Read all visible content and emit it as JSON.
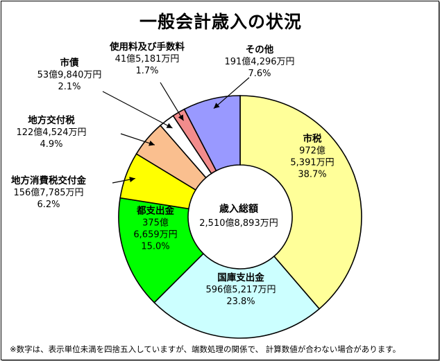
{
  "chart_data": {
    "type": "pie",
    "title": "一般会計歳入の状況",
    "center": {
      "label": "歳入総額",
      "value": "2,510億8,893万円"
    },
    "slices": [
      {
        "name": "市税",
        "amount": "972億 5,391万円",
        "value": 38.7,
        "percent": "38.7%",
        "color": "#ffff99"
      },
      {
        "name": "国庫支出金",
        "amount": "596億5,217万円",
        "value": 23.8,
        "percent": "23.8%",
        "color": "#ccffff"
      },
      {
        "name": "都支出金",
        "amount": "375億 6,659万円",
        "value": 15.0,
        "percent": "15.0%",
        "color": "#00ff00"
      },
      {
        "name": "地方消費税交付金",
        "amount": "156億7,785万円",
        "value": 6.2,
        "percent": "6.2%",
        "color": "#ffff00"
      },
      {
        "name": "地方交付税",
        "amount": "122億4,524万円",
        "value": 4.9,
        "percent": "4.9%",
        "color": "#fabf8f"
      },
      {
        "name": "市債",
        "amount": "53億9,840万円",
        "value": 2.1,
        "percent": "2.1%",
        "color": "#ffffff"
      },
      {
        "name": "使用料及び手数料",
        "amount": "41億5,181万円",
        "value": 1.7,
        "percent": "1.7%",
        "color": "#f28c8c"
      },
      {
        "name": "その他",
        "amount": "191億4,296万円",
        "value": 7.6,
        "percent": "7.6%",
        "color": "#9999ff"
      }
    ]
  },
  "footnote": "※数字は、表示単位未満を四捨五入していますが、端数処理の関係で、 計算数値が合わない場合があります。"
}
